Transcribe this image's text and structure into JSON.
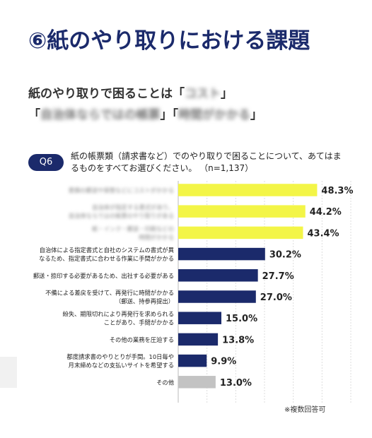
{
  "title": "⑥紙のやり取りにおける課題",
  "subtitle": {
    "line1_prefix": "紙のやり取りで困ることは「",
    "line1_blur": "コスト",
    "line1_suffix": "」",
    "line2_open1": "「",
    "line2_blur1": "自治体ならではの帳票",
    "line2_close1": "」「",
    "line2_blur2": "時間がかかる",
    "line2_close2": "」"
  },
  "question": {
    "badge": "Q6",
    "text": "紙の帳票類（請求書など）でのやり取りで困ることについて、あてはまるものをすべてお選びください。 （n=1,137）"
  },
  "note": "※複数回答可",
  "colors": {
    "yellow": "#f3f547",
    "navy": "#1b2a6b",
    "gray": "#c3c3c3"
  },
  "chart_data": {
    "type": "bar",
    "orientation": "horizontal",
    "xlim": [
      0,
      60
    ],
    "categories": [
      {
        "label": [
          "書類の郵送や保管などにコストがかかる"
        ],
        "blurred": true
      },
      {
        "label": [
          "自治体が指定する書式があり、",
          "自治体ならではの帳票のやり取りがある"
        ],
        "blurred": true
      },
      {
        "label": [
          "紙・インク・郵送・印刷などの",
          "時間がかかる"
        ],
        "blurred": true
      },
      {
        "label": [
          "自治体による指定書式と自社のシステムの書式が異",
          "なるため、指定書式に合わせる作業に手間がかかる"
        ],
        "blurred": false
      },
      {
        "label": [
          "郵送・捺印する必要があるため、出社する必要がある"
        ],
        "blurred": false
      },
      {
        "label": [
          "不備による差戻を受けて、再発行に時間がかかる",
          "（郵送、持参再提出）"
        ],
        "blurred": false
      },
      {
        "label": [
          "紛失、期限切れにより再発行を求められる",
          "ことがあり、手間がかかる"
        ],
        "blurred": false
      },
      {
        "label": [
          "その他の業務を圧迫する"
        ],
        "blurred": false
      },
      {
        "label": [
          "都度請求書のやりとりが手間。10日毎や",
          "月末締めなどの支払いサイトを希望する"
        ],
        "blurred": false
      },
      {
        "label": [
          "その他"
        ],
        "blurred": false
      }
    ],
    "values": [
      48.3,
      44.2,
      43.4,
      30.2,
      27.7,
      27.0,
      15.0,
      13.8,
      9.9,
      13.0
    ],
    "value_labels": [
      "48.3%",
      "44.2%",
      "43.4%",
      "30.2%",
      "27.7%",
      "27.0%",
      "15.0%",
      "13.8%",
      "9.9%",
      "13.0%"
    ],
    "bar_colors": [
      "yellow",
      "yellow",
      "yellow",
      "navy",
      "navy",
      "navy",
      "navy",
      "navy",
      "navy",
      "gray"
    ],
    "gridlines": true
  }
}
